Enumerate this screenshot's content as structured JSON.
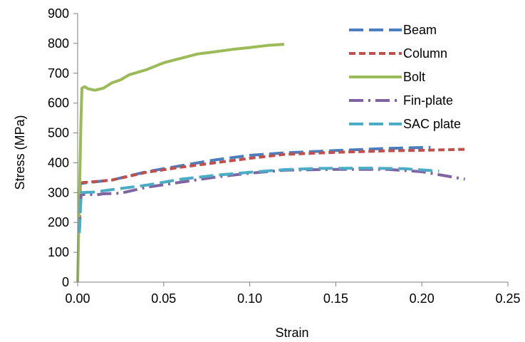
{
  "chart_data": {
    "type": "line",
    "title": "",
    "xlabel": "Strain",
    "ylabel": "Stress (MPa)",
    "xlim": [
      0,
      0.25
    ],
    "ylim": [
      0,
      900
    ],
    "xticks": [
      "0.00",
      "0.05",
      "0.10",
      "0.15",
      "0.20",
      "0.25"
    ],
    "yticks": [
      "0",
      "100",
      "200",
      "300",
      "400",
      "500",
      "600",
      "700",
      "800",
      "900"
    ],
    "grid": false,
    "legend_position": "top-right",
    "series": [
      {
        "name": "Beam",
        "color": "#4a7ebf",
        "dash": "long-dash",
        "points": [
          [
            0.001,
            170
          ],
          [
            0.0015,
            330
          ],
          [
            0.005,
            333
          ],
          [
            0.02,
            342
          ],
          [
            0.04,
            370
          ],
          [
            0.06,
            390
          ],
          [
            0.08,
            410
          ],
          [
            0.1,
            425
          ],
          [
            0.12,
            433
          ],
          [
            0.15,
            441
          ],
          [
            0.18,
            448
          ],
          [
            0.205,
            452
          ]
        ]
      },
      {
        "name": "Column",
        "color": "#c0504d",
        "dash": "dash",
        "points": [
          [
            0.001,
            170
          ],
          [
            0.0015,
            333
          ],
          [
            0.008,
            336
          ],
          [
            0.02,
            342
          ],
          [
            0.04,
            368
          ],
          [
            0.06,
            385
          ],
          [
            0.08,
            400
          ],
          [
            0.1,
            415
          ],
          [
            0.12,
            428
          ],
          [
            0.15,
            435
          ],
          [
            0.18,
            440
          ],
          [
            0.2,
            442
          ],
          [
            0.225,
            445
          ]
        ]
      },
      {
        "name": "Bolt",
        "color": "#9bbb59",
        "dash": "solid",
        "points": [
          [
            0,
            0
          ],
          [
            0.002,
            555
          ],
          [
            0.0025,
            650
          ],
          [
            0.004,
            655
          ],
          [
            0.006,
            648
          ],
          [
            0.01,
            643
          ],
          [
            0.015,
            650
          ],
          [
            0.02,
            668
          ],
          [
            0.025,
            678
          ],
          [
            0.03,
            695
          ],
          [
            0.04,
            712
          ],
          [
            0.05,
            735
          ],
          [
            0.06,
            750
          ],
          [
            0.07,
            765
          ],
          [
            0.08,
            772
          ],
          [
            0.09,
            780
          ],
          [
            0.1,
            786
          ],
          [
            0.11,
            793
          ],
          [
            0.12,
            797
          ]
        ]
      },
      {
        "name": "Fin-plate",
        "color": "#8064a2",
        "dash": "dash-dot",
        "points": [
          [
            0.001,
            170
          ],
          [
            0.002,
            292
          ],
          [
            0.005,
            295
          ],
          [
            0.01,
            292
          ],
          [
            0.015,
            296
          ],
          [
            0.025,
            298
          ],
          [
            0.04,
            318
          ],
          [
            0.06,
            335
          ],
          [
            0.08,
            352
          ],
          [
            0.1,
            365
          ],
          [
            0.12,
            375
          ],
          [
            0.15,
            378
          ],
          [
            0.18,
            378
          ],
          [
            0.2,
            370
          ],
          [
            0.225,
            345
          ]
        ]
      },
      {
        "name": "SAC plate",
        "color": "#4bacc6",
        "dash": "long-dash",
        "points": [
          [
            0.001,
            165
          ],
          [
            0.002,
            300
          ],
          [
            0.01,
            302
          ],
          [
            0.02,
            310
          ],
          [
            0.04,
            325
          ],
          [
            0.06,
            345
          ],
          [
            0.08,
            358
          ],
          [
            0.1,
            368
          ],
          [
            0.12,
            377
          ],
          [
            0.14,
            381
          ],
          [
            0.17,
            382
          ],
          [
            0.19,
            380
          ],
          [
            0.21,
            372
          ]
        ]
      }
    ]
  }
}
